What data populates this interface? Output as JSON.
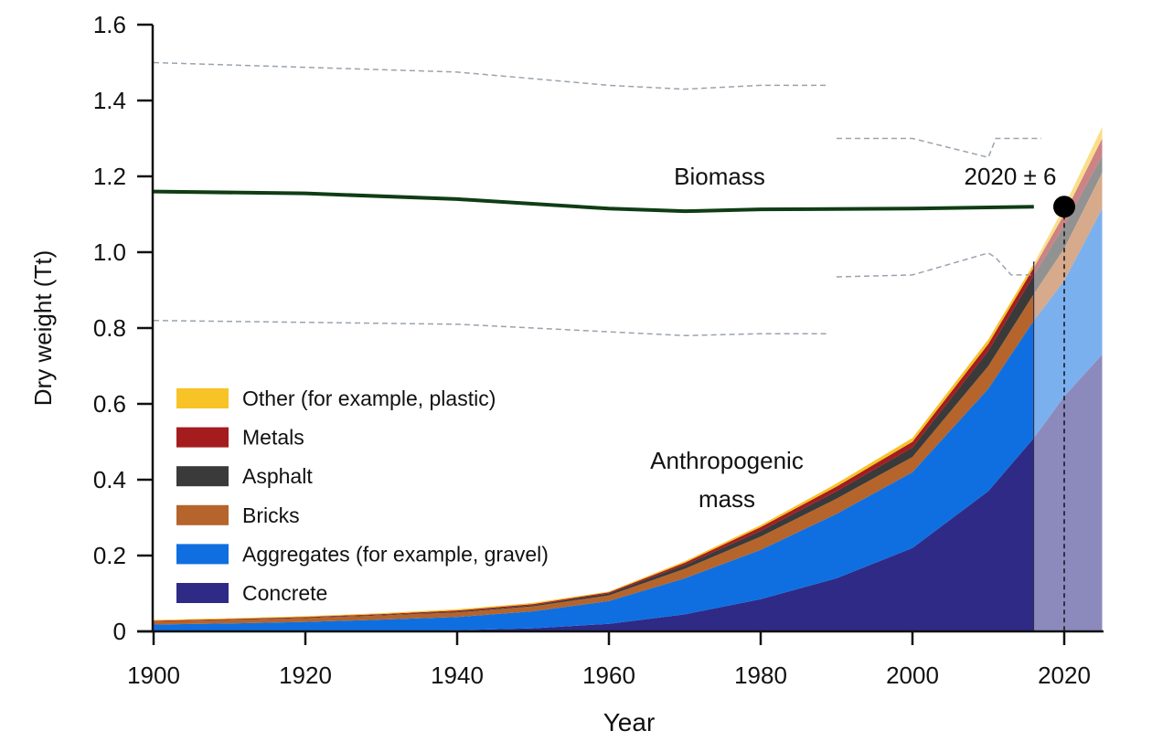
{
  "chart_data": {
    "type": "area",
    "xlabel": "Year",
    "ylabel": "Dry weight (Tt)",
    "xlim": [
      1900,
      2025
    ],
    "ylim": [
      0,
      1.6
    ],
    "xticks": [
      "1900",
      "1920",
      "1940",
      "1960",
      "1980",
      "2000",
      "2020"
    ],
    "yticks": [
      "0",
      "0.2",
      "0.4",
      "0.6",
      "0.8",
      "1.0",
      "1.2",
      "1.4",
      "1.6"
    ],
    "grid": false,
    "legend_placement": "left",
    "years": [
      1900,
      1910,
      1920,
      1930,
      1940,
      1950,
      1960,
      1970,
      1980,
      1990,
      2000,
      2010,
      2016,
      2020,
      2025
    ],
    "series": [
      {
        "name": "Concrete",
        "color": "#2e2a86",
        "values": [
          0,
          0,
          0,
          0.001,
          0.003,
          0.008,
          0.02,
          0.045,
          0.085,
          0.14,
          0.22,
          0.37,
          0.51,
          0.62,
          0.73
        ]
      },
      {
        "name": "Aggregates (for example, gravel)",
        "color": "#0f6fe0",
        "values": [
          0.018,
          0.021,
          0.025,
          0.03,
          0.035,
          0.045,
          0.06,
          0.095,
          0.13,
          0.17,
          0.2,
          0.27,
          0.31,
          0.305,
          0.385
        ]
      },
      {
        "name": "Bricks",
        "color": "#b5642b",
        "values": [
          0.008,
          0.009,
          0.01,
          0.011,
          0.012,
          0.013,
          0.015,
          0.025,
          0.035,
          0.04,
          0.04,
          0.06,
          0.07,
          0.085,
          0.095
        ]
      },
      {
        "name": "Asphalt",
        "color": "#3a3a3a",
        "values": [
          0,
          0.0005,
          0.001,
          0.001,
          0.002,
          0.003,
          0.005,
          0.01,
          0.015,
          0.02,
          0.025,
          0.04,
          0.05,
          0.06,
          0.045
        ]
      },
      {
        "name": "Metals",
        "color": "#a51c1f",
        "values": [
          0.002,
          0.002,
          0.002,
          0.0025,
          0.003,
          0.003,
          0.003,
          0.006,
          0.01,
          0.012,
          0.015,
          0.018,
          0.02,
          0.03,
          0.045
        ]
      },
      {
        "name": "Other (for example, plastic)",
        "color": "#f7c326",
        "values": [
          0.002,
          0.002,
          0.002,
          0.0025,
          0.003,
          0.003,
          0.002,
          0.004,
          0.005,
          0.008,
          0.01,
          0.012,
          0.01,
          0.02,
          0.03
        ]
      }
    ],
    "legend_order": [
      "Other (for example, plastic)",
      "Metals",
      "Asphalt",
      "Bricks",
      "Aggregates (for example, gravel)",
      "Concrete"
    ],
    "projection_start_year": 2016,
    "biomass": {
      "label": "Biomass",
      "color": "#0f3d14",
      "x": [
        1900,
        1920,
        1940,
        1960,
        1970,
        1980,
        2000,
        2016
      ],
      "y": [
        1.16,
        1.155,
        1.14,
        1.115,
        1.108,
        1.113,
        1.115,
        1.12
      ],
      "uncertainty_segments": [
        {
          "x": [
            1900,
            1940,
            1960,
            1970,
            1980,
            1989
          ],
          "y": [
            1.5,
            1.475,
            1.44,
            1.43,
            1.44,
            1.44
          ]
        },
        {
          "x": [
            1900,
            1940,
            1960,
            1970,
            1980,
            1989
          ],
          "y": [
            0.82,
            0.81,
            0.79,
            0.78,
            0.785,
            0.785
          ]
        },
        {
          "x": [
            1990,
            2000,
            2010,
            2011,
            2017
          ],
          "y": [
            1.3,
            1.3,
            1.25,
            1.3,
            1.3
          ]
        },
        {
          "x": [
            1990,
            2000,
            2010,
            2011,
            2013,
            2016
          ],
          "y": [
            0.935,
            0.94,
            0.998,
            0.985,
            0.94,
            0.94
          ]
        }
      ]
    },
    "annotations": {
      "crossover_label": "2020 ± 6",
      "crossover_point": {
        "x": 2020,
        "y": 1.12
      },
      "anthropogenic_label_line1": "Anthropogenic",
      "anthropogenic_label_line2": "mass"
    }
  }
}
